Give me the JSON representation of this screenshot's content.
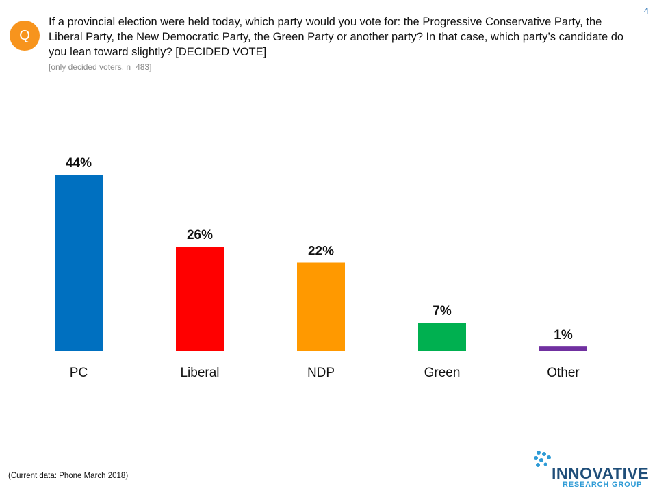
{
  "page_number": "4",
  "question_badge": "Q",
  "question_text": "If a provincial election were held today, which party would you vote for: the Progressive Conservative Party, the Liberal Party, the New Democratic Party, the Green Party or another party? In that case, which party’s candidate do you lean toward slightly?  [DECIDED VOTE]",
  "sample_note": "[only decided voters, n=483]",
  "footer_note": "(Current data: Phone March 2018)",
  "logo": {
    "name": "INNOVATIVE",
    "sub": "RESEARCH GROUP"
  },
  "colors": {
    "accent": "#f7941d",
    "pc": "#0070c0",
    "liberal": "#ff0000",
    "ndp": "#ff9900",
    "green": "#00b050",
    "other": "#7030a0"
  },
  "chart_data": {
    "type": "bar",
    "categories": [
      "PC",
      "Liberal",
      "NDP",
      "Green",
      "Other"
    ],
    "values": [
      44,
      26,
      22,
      7,
      1
    ],
    "value_labels": [
      "44%",
      "26%",
      "22%",
      "7%",
      "1%"
    ],
    "bar_colors": [
      "#0070c0",
      "#ff0000",
      "#ff9900",
      "#00b050",
      "#7030a0"
    ],
    "ylim": [
      0,
      44
    ],
    "grid": false,
    "legend": "none"
  }
}
